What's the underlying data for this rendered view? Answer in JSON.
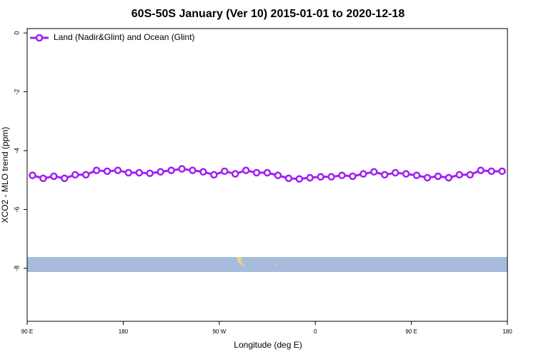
{
  "chart_data": {
    "type": "line",
    "title": "60S-50S January (Ver 10)   2015-01-01 to 2020-12-18",
    "x_label": "Longitude (deg E)",
    "y_label": "XCO2 - MLO trend (ppm)",
    "x": [
      95,
      105,
      115,
      125,
      135,
      145,
      155,
      165,
      175,
      185,
      195,
      205,
      215,
      225,
      235,
      245,
      255,
      265,
      275,
      285,
      295,
      305,
      315,
      325,
      335,
      345,
      355,
      365,
      375,
      385,
      395,
      405,
      415,
      425,
      435,
      445,
      455,
      465,
      475,
      485,
      495,
      505,
      515,
      525,
      535
    ],
    "series": [
      {
        "name": "Land (Nadir&Glint) and Ocean (Glint)",
        "color": "#a020f0",
        "values": [
          -4.84,
          -4.94,
          -4.87,
          -4.94,
          -4.82,
          -4.82,
          -4.67,
          -4.7,
          -4.67,
          -4.75,
          -4.75,
          -4.77,
          -4.72,
          -4.67,
          -4.62,
          -4.67,
          -4.72,
          -4.82,
          -4.7,
          -4.79,
          -4.67,
          -4.75,
          -4.75,
          -4.84,
          -4.94,
          -4.96,
          -4.92,
          -4.89,
          -4.89,
          -4.84,
          -4.87,
          -4.79,
          -4.72,
          -4.82,
          -4.75,
          -4.79,
          -4.84,
          -4.92,
          -4.87,
          -4.92,
          -4.82,
          -4.82,
          -4.67,
          -4.7,
          -4.7
        ]
      }
    ],
    "xlim": [
      90,
      540
    ],
    "xticks": [
      {
        "value": 90,
        "label": "90 E"
      },
      {
        "value": 180,
        "label": "180"
      },
      {
        "value": 270,
        "label": "90 W"
      },
      {
        "value": 360,
        "label": "0"
      },
      {
        "value": 450,
        "label": "90 E"
      },
      {
        "value": 540,
        "label": "180"
      }
    ],
    "ylim": [
      -9.8,
      0.15
    ],
    "yticks": [
      0,
      -2,
      -4,
      -6,
      -8
    ],
    "legend": "top-left"
  }
}
